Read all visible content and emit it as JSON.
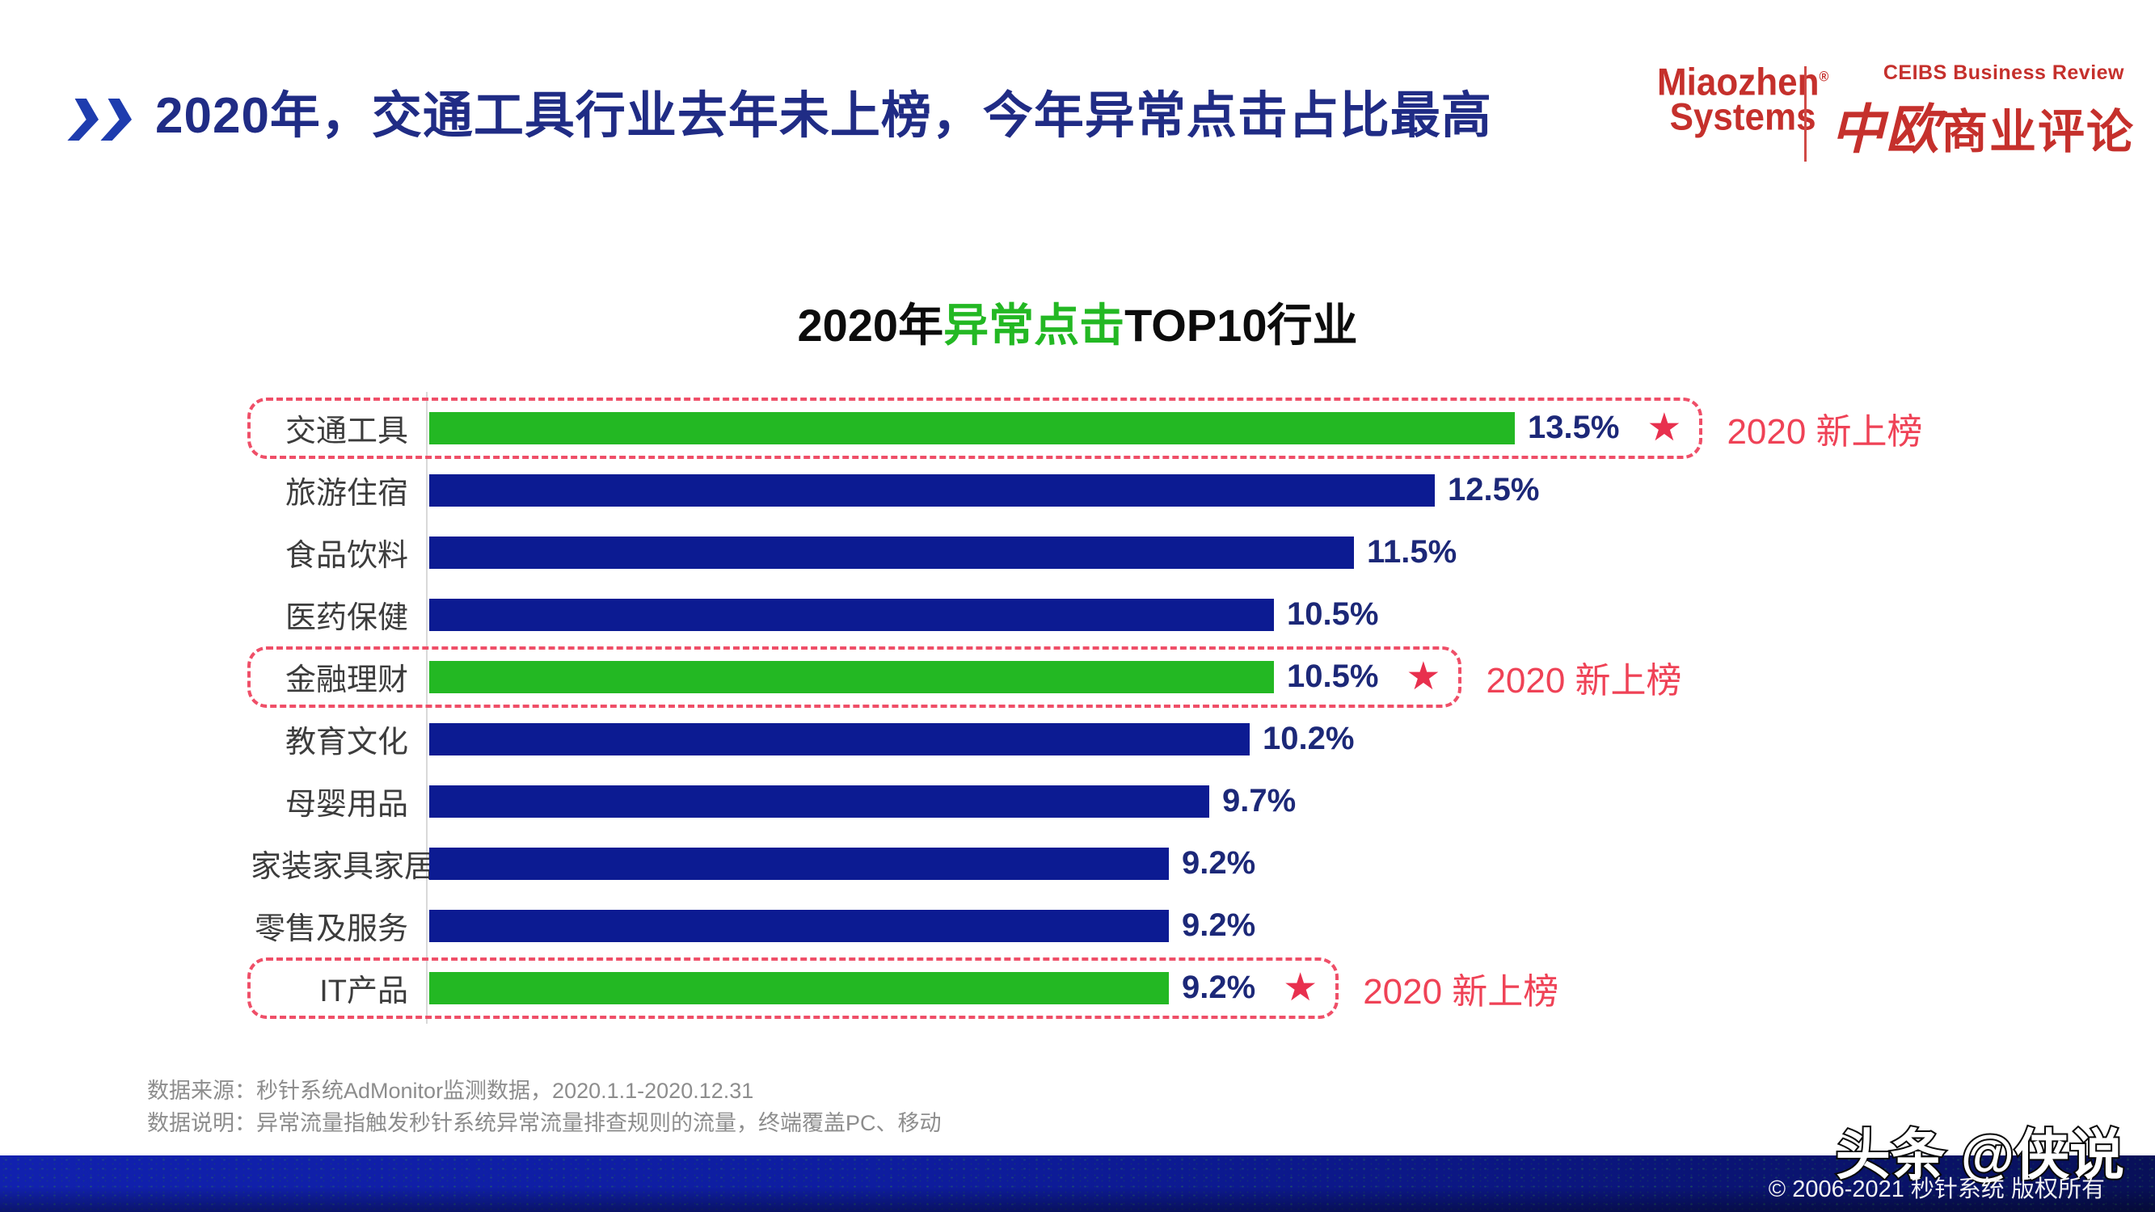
{
  "header": {
    "title": "2020年，交通工具行业去年未上榜，今年异常点击占比最高",
    "brand": {
      "miaozhen_line1": "Miaozhen",
      "miaozhen_reg": "®",
      "miaozhen_line2": "Systems",
      "ceibs_en": "CEIBS Business Review",
      "ceibs_cn_calligraphy": "中欧",
      "ceibs_cn_rest": "商业评论",
      "brand_red": "#c5302c"
    }
  },
  "chart_title": {
    "prefix": "2020年",
    "highlight": "异常点击",
    "suffix": "TOP10行业"
  },
  "chart_data": {
    "type": "bar",
    "orientation": "horizontal",
    "title": "2020年异常点击TOP10行业",
    "categories": [
      "交通工具",
      "旅游住宿",
      "食品饮料",
      "医药保健",
      "金融理财",
      "教育文化",
      "母婴用品",
      "家装家具家居",
      "零售及服务",
      "IT产品"
    ],
    "values": [
      13.5,
      12.5,
      11.5,
      10.5,
      10.5,
      10.2,
      9.7,
      9.2,
      9.2,
      9.2
    ],
    "value_labels": [
      "13.5%",
      "12.5%",
      "11.5%",
      "10.5%",
      "10.5%",
      "10.2%",
      "9.7%",
      "9.2%",
      "9.2%",
      "9.2%"
    ],
    "unit": "%",
    "xlim": [
      0,
      14
    ],
    "grid": "off",
    "legend": "none",
    "new_entry": [
      true,
      false,
      false,
      false,
      true,
      false,
      false,
      false,
      false,
      true
    ],
    "annotation_label": "2020 新上榜",
    "star_icon": "★",
    "colors": {
      "bar": "#0c1b92",
      "bar_new_entry": "#23b823",
      "value_text": "#1c2878",
      "annotation": "#ef4256",
      "star": "#e8304e",
      "highlight_box_border": "#ef4f68",
      "title_highlight": "#23b823"
    }
  },
  "footnotes": {
    "source": "数据来源：秒针系统AdMonitor监测数据，2020.1.1-2020.12.31",
    "note": "数据说明：异常流量指触发秒针系统异常流量排查规则的流量，终端覆盖PC、移动"
  },
  "footer_bar": {
    "watermark": "头条 @侠说",
    "copyright": "© 2006-2021 秒针系统 版权所有"
  }
}
